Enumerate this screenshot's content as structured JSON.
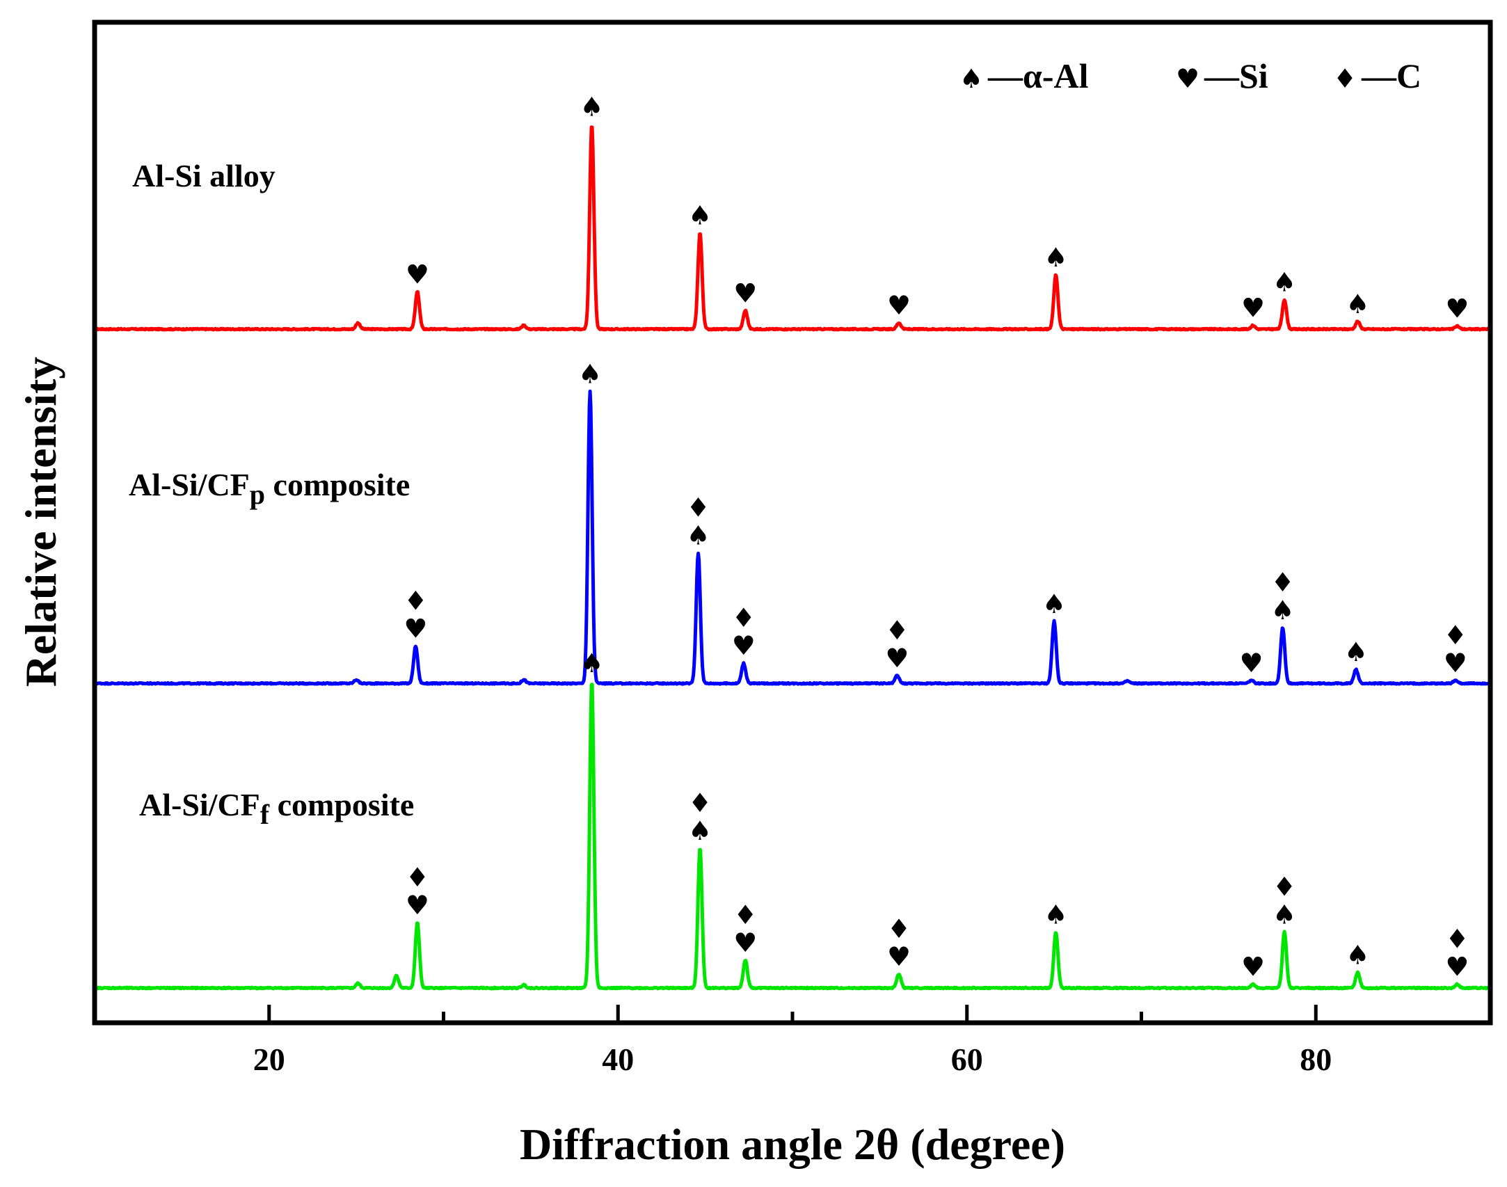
{
  "chart_data": {
    "type": "line",
    "title": "",
    "xlabel": "Diffraction angle 2θ (degree)",
    "ylabel": "Relative intensity",
    "xlim": [
      10,
      90
    ],
    "xticks": [
      20,
      40,
      60,
      80
    ],
    "ylim": [
      0,
      3
    ],
    "grid": false,
    "y_ticks_labeled": false,
    "legend": {
      "placement": "top-right",
      "entries": [
        {
          "symbol": "♠",
          "symbol_name": "spade-icon",
          "text": "—α-Al"
        },
        {
          "symbol": "♥",
          "symbol_name": "heart-icon",
          "text": "—Si"
        },
        {
          "symbol": "♦",
          "symbol_name": "diamond-icon",
          "text": "—C"
        }
      ]
    },
    "peak_width_deg": 0.12,
    "series": [
      {
        "name": "Al-Si alloy",
        "label_main": "Al-Si alloy",
        "label_sub": "",
        "label_suffix": "",
        "color": "#ff0000",
        "offset": 2.12,
        "baseline_noise": 0.002,
        "peaks": [
          {
            "x": 25.1,
            "h": 0.02
          },
          {
            "x": 28.5,
            "h": 0.12
          },
          {
            "x": 34.6,
            "h": 0.012
          },
          {
            "x": 38.5,
            "h": 0.66
          },
          {
            "x": 44.7,
            "h": 0.31
          },
          {
            "x": 47.3,
            "h": 0.06
          },
          {
            "x": 56.1,
            "h": 0.02
          },
          {
            "x": 65.1,
            "h": 0.175
          },
          {
            "x": 76.4,
            "h": 0.012
          },
          {
            "x": 78.2,
            "h": 0.095
          },
          {
            "x": 82.4,
            "h": 0.025
          },
          {
            "x": 88.1,
            "h": 0.01
          }
        ],
        "markers": [
          {
            "x": 28.5,
            "stack": [
              "♥"
            ]
          },
          {
            "x": 38.5,
            "stack": [
              "♠"
            ]
          },
          {
            "x": 44.7,
            "stack": [
              "♠"
            ]
          },
          {
            "x": 47.3,
            "stack": [
              "♥"
            ]
          },
          {
            "x": 56.1,
            "stack": [
              "♥"
            ]
          },
          {
            "x": 65.1,
            "stack": [
              "♠"
            ]
          },
          {
            "x": 76.4,
            "stack": [
              "♥"
            ]
          },
          {
            "x": 78.2,
            "stack": [
              "♠"
            ]
          },
          {
            "x": 82.4,
            "stack": [
              "♠"
            ]
          },
          {
            "x": 88.1,
            "stack": [
              "♥"
            ]
          }
        ]
      },
      {
        "name": "Al-Si/CFp composite",
        "label_main": "Al-Si/CF",
        "label_sub": "p",
        "label_suffix": " composite",
        "color": "#0000ff",
        "offset": 0.98,
        "baseline_noise": 0.002,
        "peaks": [
          {
            "x": 25.0,
            "h": 0.012
          },
          {
            "x": 28.4,
            "h": 0.12
          },
          {
            "x": 34.6,
            "h": 0.012
          },
          {
            "x": 38.4,
            "h": 0.94
          },
          {
            "x": 44.6,
            "h": 0.42
          },
          {
            "x": 47.2,
            "h": 0.065
          },
          {
            "x": 56.0,
            "h": 0.025
          },
          {
            "x": 65.0,
            "h": 0.2
          },
          {
            "x": 69.2,
            "h": 0.008
          },
          {
            "x": 76.3,
            "h": 0.01
          },
          {
            "x": 78.1,
            "h": 0.18
          },
          {
            "x": 82.3,
            "h": 0.045
          },
          {
            "x": 88.0,
            "h": 0.01
          }
        ],
        "markers": [
          {
            "x": 28.4,
            "stack": [
              "♦",
              "♥"
            ]
          },
          {
            "x": 38.4,
            "stack": [
              "♠"
            ]
          },
          {
            "x": 44.6,
            "stack": [
              "♦",
              "♠"
            ]
          },
          {
            "x": 47.2,
            "stack": [
              "♦",
              "♥"
            ]
          },
          {
            "x": 56.0,
            "stack": [
              "♦",
              "♥"
            ]
          },
          {
            "x": 65.0,
            "stack": [
              "♠"
            ]
          },
          {
            "x": 76.3,
            "stack": [
              "♥"
            ]
          },
          {
            "x": 78.1,
            "stack": [
              "♦",
              "♠"
            ]
          },
          {
            "x": 82.3,
            "stack": [
              "♠"
            ]
          },
          {
            "x": 88.0,
            "stack": [
              "♦",
              "♥"
            ]
          }
        ]
      },
      {
        "name": "Al-Si/CFf composite",
        "label_main": "Al-Si/CF",
        "label_sub": "f",
        "label_suffix": " composite",
        "color": "#00e600",
        "offset": 0.0,
        "baseline_noise": 0.002,
        "peaks": [
          {
            "x": 25.1,
            "h": 0.015
          },
          {
            "x": 27.3,
            "h": 0.04
          },
          {
            "x": 28.5,
            "h": 0.21
          },
          {
            "x": 34.6,
            "h": 0.01
          },
          {
            "x": 38.5,
            "h": 0.99
          },
          {
            "x": 44.7,
            "h": 0.45
          },
          {
            "x": 47.3,
            "h": 0.09
          },
          {
            "x": 56.1,
            "h": 0.045
          },
          {
            "x": 65.1,
            "h": 0.18
          },
          {
            "x": 76.4,
            "h": 0.012
          },
          {
            "x": 78.2,
            "h": 0.18
          },
          {
            "x": 82.4,
            "h": 0.05
          },
          {
            "x": 88.1,
            "h": 0.012
          }
        ],
        "markers": [
          {
            "x": 28.5,
            "stack": [
              "♦",
              "♥"
            ]
          },
          {
            "x": 38.5,
            "stack": [
              "♠"
            ]
          },
          {
            "x": 44.7,
            "stack": [
              "♦",
              "♠"
            ]
          },
          {
            "x": 47.3,
            "stack": [
              "♦",
              "♥"
            ]
          },
          {
            "x": 56.1,
            "stack": [
              "♦",
              "♥"
            ]
          },
          {
            "x": 65.1,
            "stack": [
              "♠"
            ]
          },
          {
            "x": 76.4,
            "stack": [
              "♥"
            ]
          },
          {
            "x": 78.2,
            "stack": [
              "♦",
              "♠"
            ]
          },
          {
            "x": 82.4,
            "stack": [
              "♠"
            ]
          },
          {
            "x": 88.1,
            "stack": [
              "♦",
              "♥"
            ]
          }
        ]
      }
    ]
  }
}
